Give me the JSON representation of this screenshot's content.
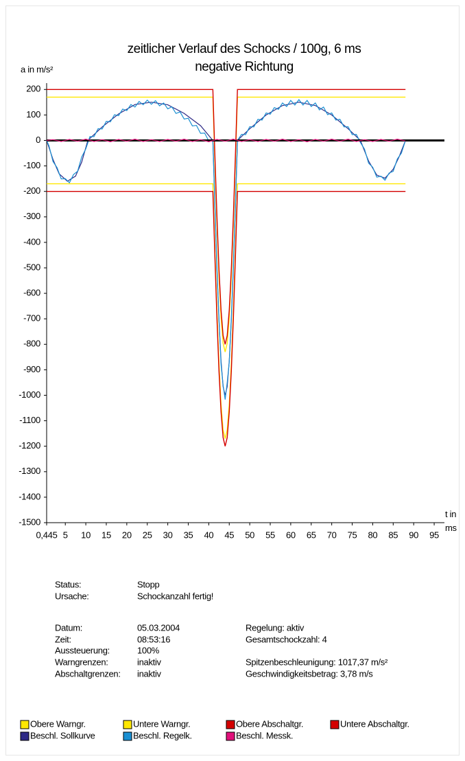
{
  "chart_data": {
    "type": "line",
    "title": "zeitlicher Verlauf des Schocks / 100g, 6 ms",
    "subtitle": "negative Richtung",
    "y_label": "a in m/s²",
    "x_label": "t in ms",
    "xlim": [
      0.445,
      97.5
    ],
    "ylim": [
      -1500,
      225
    ],
    "xticks": [
      {
        "value": 0.445,
        "label": "0,445"
      },
      5,
      10,
      15,
      20,
      25,
      30,
      35,
      40,
      45,
      50,
      55,
      60,
      65,
      70,
      75,
      80,
      85,
      90,
      95
    ],
    "yticks": [
      200,
      100,
      0,
      -100,
      -200,
      -300,
      -400,
      -500,
      -600,
      -700,
      -800,
      -900,
      -1000,
      -1100,
      -1200,
      -1300,
      -1400,
      -1500
    ],
    "grid": false,
    "series": [
      {
        "name": "Obere Warngr.",
        "color": "#ffe800",
        "x": [
          0.445,
          41,
          41.5,
          42,
          42.5,
          43,
          43.5,
          44,
          44.5,
          45,
          45.5,
          46,
          46.5,
          47,
          88
        ],
        "values": [
          170,
          170,
          -89,
          -330,
          -537,
          -696,
          -796,
          -830,
          -796,
          -696,
          -537,
          -330,
          -89,
          170,
          170
        ]
      },
      {
        "name": "Untere Warngr.",
        "color": "#ffe800",
        "x": [
          0.445,
          41,
          41.5,
          42,
          42.5,
          43,
          43.5,
          44,
          44.5,
          45,
          45.5,
          46,
          46.5,
          47,
          88
        ],
        "values": [
          -170,
          -170,
          -429,
          -670,
          -877,
          -1036,
          -1136,
          -1170,
          -1136,
          -1036,
          -877,
          -670,
          -429,
          -170,
          -170
        ]
      },
      {
        "name": "Obere Abschaltgr.",
        "color": "#d40000",
        "x": [
          0.445,
          41,
          41.5,
          42,
          42.5,
          43,
          43.5,
          44,
          44.5,
          45,
          45.5,
          46,
          46.5,
          47,
          88
        ],
        "values": [
          200,
          200,
          -59,
          -300,
          -507,
          -666,
          -766,
          -800,
          -766,
          -666,
          -507,
          -300,
          -59,
          200,
          200
        ]
      },
      {
        "name": "Untere Abschaltgr.",
        "color": "#d40000",
        "x": [
          0.445,
          41,
          41.5,
          42,
          42.5,
          43,
          43.5,
          44,
          44.5,
          45,
          45.5,
          46,
          46.5,
          47,
          88
        ],
        "values": [
          -200,
          -200,
          -459,
          -700,
          -907,
          -1066,
          -1166,
          -1200,
          -1166,
          -1066,
          -907,
          -700,
          -459,
          -200,
          -200
        ]
      },
      {
        "name": "Beschl. Sollkurve",
        "color": "#2e2a86",
        "x": [
          0.445,
          2,
          3.5,
          5.5,
          7.5,
          9,
          10.5,
          14,
          18,
          22,
          26,
          30,
          34,
          38,
          41,
          41.5,
          42,
          42.5,
          43,
          43.5,
          44,
          44.5,
          45,
          45.5,
          46,
          46.5,
          47,
          50,
          54,
          58,
          62,
          66,
          70,
          74,
          77,
          79,
          81,
          83,
          85,
          86.5,
          88
        ],
        "values": [
          0,
          -75,
          -131,
          -160,
          -140,
          -85,
          0,
          53,
          104,
          141,
          150,
          140,
          106,
          58,
          0,
          -259,
          -500,
          -707,
          -866,
          -966,
          -1000,
          -966,
          -866,
          -707,
          -500,
          -259,
          0,
          46,
          100,
          137,
          150,
          137,
          100,
          46,
          0,
          -81,
          -136,
          -148,
          -113,
          -62,
          0
        ]
      },
      {
        "name": "Beschl. Regelk.",
        "color": "#1a8fd2",
        "x": [
          0.445,
          1,
          2,
          3,
          4,
          5,
          6,
          7,
          8,
          9,
          10,
          11,
          12,
          13,
          14,
          15,
          16,
          17,
          18,
          19,
          20,
          21,
          22,
          23,
          24,
          25,
          26,
          27,
          28,
          29,
          30,
          31,
          32,
          33,
          34,
          35,
          36,
          37,
          38,
          39,
          40,
          41,
          41.5,
          42,
          42.5,
          43,
          43.5,
          44,
          44.5,
          45,
          45.5,
          46,
          46.5,
          47,
          48,
          49,
          50,
          51,
          52,
          53,
          54,
          55,
          56,
          57,
          58,
          59,
          60,
          61,
          62,
          63,
          64,
          65,
          66,
          67,
          68,
          69,
          70,
          71,
          72,
          73,
          74,
          75,
          76,
          77,
          78,
          79,
          80,
          81,
          82,
          83,
          84,
          85,
          86,
          87,
          88
        ],
        "values": [
          0,
          -20,
          -83,
          -107,
          -151,
          -150,
          -166,
          -134,
          -121,
          -65,
          -33,
          15,
          15,
          46,
          45,
          75,
          73,
          101,
          97,
          123,
          117,
          141,
          131,
          153,
          140,
          158,
          142,
          156,
          136,
          147,
          124,
          132,
          106,
          112,
          84,
          87,
          57,
          59,
          28,
          29,
          -2,
          0,
          -250,
          -510,
          -700,
          -880,
          -960,
          -1017,
          -950,
          -870,
          -700,
          -490,
          -260,
          0,
          24,
          23,
          54,
          53,
          83,
          80,
          108,
          103,
          129,
          122,
          147,
          133,
          157,
          139,
          160,
          139,
          157,
          133,
          147,
          120,
          131,
          101,
          108,
          80,
          83,
          53,
          54,
          23,
          24,
          -8,
          -34,
          -89,
          -105,
          -144,
          -140,
          -156,
          -128,
          -121,
          -73,
          -50,
          0
        ]
      },
      {
        "name": "Beschl. Messk.",
        "color": "#e0107a",
        "x": [
          0.445,
          2,
          4,
          6,
          8,
          10,
          12,
          14,
          16,
          18,
          20,
          22,
          24,
          26,
          28,
          30,
          32,
          34,
          36,
          38,
          40,
          42,
          44,
          46,
          48,
          50,
          52,
          54,
          56,
          58,
          60,
          62,
          64,
          66,
          68,
          70,
          72,
          74,
          76,
          78,
          80,
          82,
          84,
          86,
          88
        ],
        "values": [
          0,
          3,
          -4,
          4,
          -3,
          5,
          -4,
          3,
          -5,
          4,
          -3,
          5,
          -4,
          3,
          -4,
          4,
          -3,
          5,
          -4,
          3,
          -5,
          4,
          -3,
          5,
          -4,
          3,
          -4,
          4,
          -3,
          5,
          -4,
          3,
          -5,
          4,
          -3,
          5,
          -3,
          5,
          -4,
          3,
          -4,
          4,
          -3,
          5,
          -2
        ]
      }
    ]
  },
  "info": {
    "left": [
      {
        "label": "Status:",
        "value": "Stopp"
      },
      {
        "label": "Ursache:",
        "value": "Schockanzahl fertig!"
      },
      {
        "label": "Datum:",
        "value": "05.03.2004"
      },
      {
        "label": "Zeit:",
        "value": "08:53:16"
      },
      {
        "label": "Aussteuerung:",
        "value": "100%"
      },
      {
        "label": "Warngrenzen:",
        "value": "inaktiv"
      },
      {
        "label": "Abschaltgrenzen:",
        "value": "inaktiv"
      }
    ],
    "right": [
      "Regelung: aktiv",
      "Gesamtschockzahl: 4",
      "Spitzenbeschleunigung: 1017,37 m/s²",
      "Geschwindigkeitsbetrag: 3,78 m/s"
    ]
  }
}
